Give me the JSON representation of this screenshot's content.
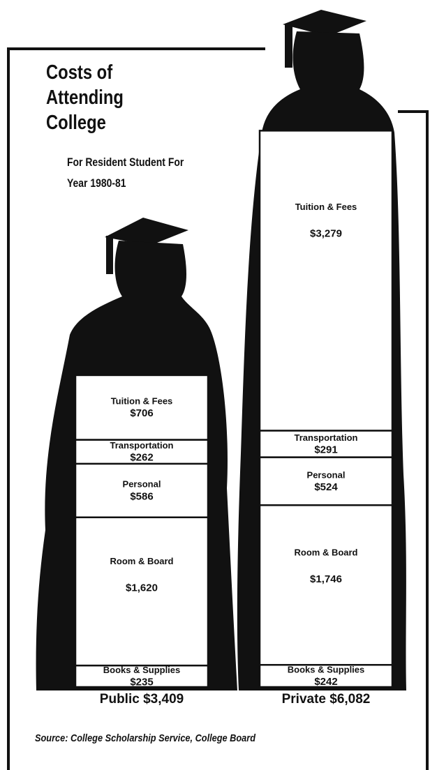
{
  "chart_data": {
    "type": "stacked-bar",
    "title": "Costs of Attending College",
    "subtitle": "For Resident Student For Year 1980-81",
    "categories": [
      "Public $3,409",
      "Private $6,082"
    ],
    "series": [
      {
        "name": "Tuition & Fees",
        "values": [
          706,
          3279
        ],
        "value_labels": [
          "$706",
          "$3,279"
        ]
      },
      {
        "name": "Transportation",
        "values": [
          262,
          291
        ],
        "value_labels": [
          "$262",
          "$291"
        ]
      },
      {
        "name": "Personal",
        "values": [
          586,
          524
        ],
        "value_labels": [
          "$586",
          "$524"
        ]
      },
      {
        "name": "Room & Board",
        "values": [
          1620,
          1746
        ],
        "value_labels": [
          "$1,620",
          "$1,746"
        ]
      },
      {
        "name": "Books & Supplies",
        "values": [
          235,
          242
        ],
        "value_labels": [
          "$235",
          "$242"
        ]
      }
    ],
    "source": "Source: College Scholarship Service, College Board"
  }
}
